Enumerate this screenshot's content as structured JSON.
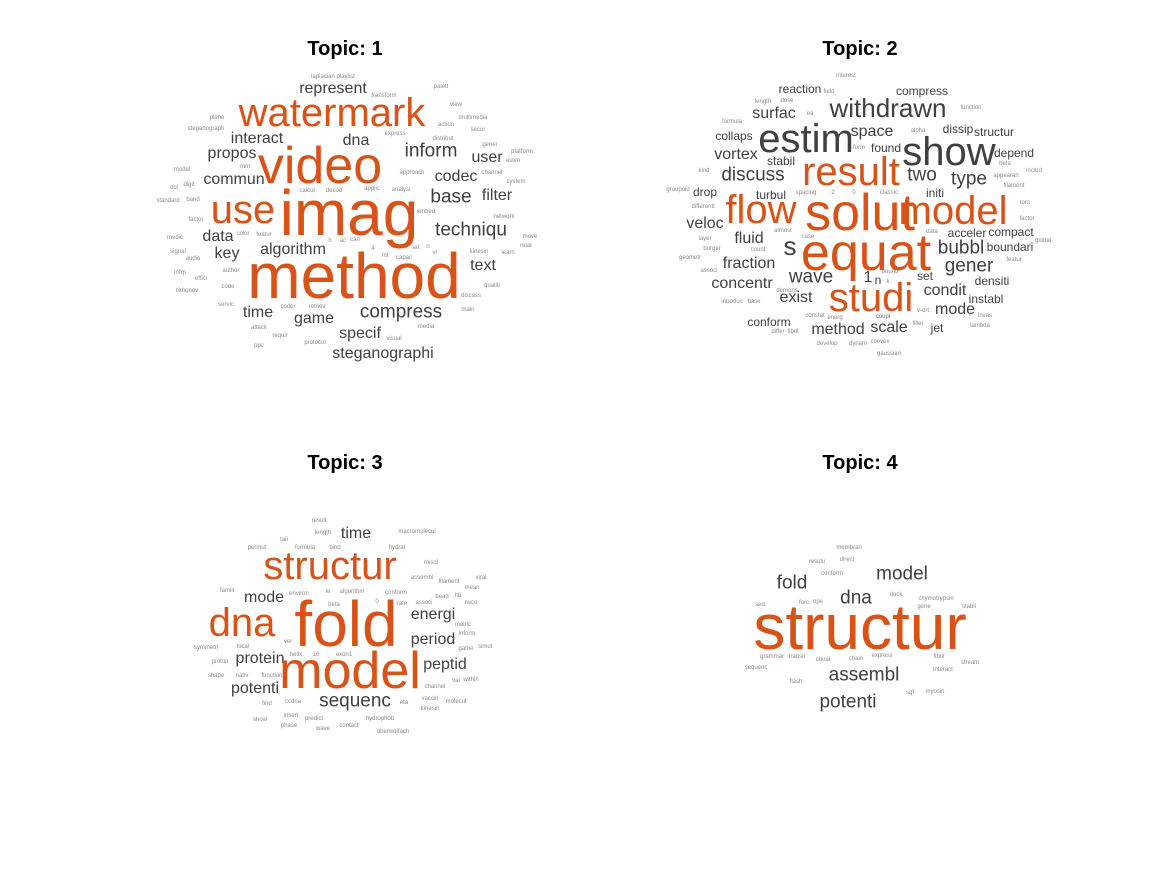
{
  "colors": {
    "highlight": "#d95319",
    "normal": "#404040",
    "minor": "#8c8c8c"
  },
  "panels": [
    {
      "title": "Topic: 1",
      "words": [
        {
          "text": "laplacian playlist",
          "w": 1
        },
        {
          "text": "palett",
          "w": 1
        },
        {
          "text": "transform",
          "w": 1
        },
        {
          "text": "represent",
          "w": 3
        },
        {
          "text": "watermark",
          "w": 6
        },
        {
          "text": "view",
          "w": 1
        },
        {
          "text": "plane",
          "w": 1
        },
        {
          "text": "multimedia",
          "w": 1
        },
        {
          "text": "action",
          "w": 1
        },
        {
          "text": "steganograph",
          "w": 1
        },
        {
          "text": "secur",
          "w": 1
        },
        {
          "text": "interact",
          "w": 3
        },
        {
          "text": "dna",
          "w": 3
        },
        {
          "text": "distribut",
          "w": 1
        },
        {
          "text": "express",
          "w": 1
        },
        {
          "text": "gener",
          "w": 1
        },
        {
          "text": "inform",
          "w": 4
        },
        {
          "text": "propos",
          "w": 3
        },
        {
          "text": "video",
          "w": 7
        },
        {
          "text": "platform",
          "w": 1
        },
        {
          "text": "user",
          "w": 3
        },
        {
          "text": "estim",
          "w": 1
        },
        {
          "text": "mm",
          "w": 1
        },
        {
          "text": "model",
          "w": 1
        },
        {
          "text": "commun",
          "w": 3
        },
        {
          "text": "approach",
          "w": 1
        },
        {
          "text": "codec",
          "w": 3
        },
        {
          "text": "channel",
          "w": 1
        },
        {
          "text": "system",
          "w": 1
        },
        {
          "text": "dct",
          "w": 1
        },
        {
          "text": "digit",
          "w": 1
        },
        {
          "text": "calcul",
          "w": 1
        },
        {
          "text": "decod",
          "w": 1
        },
        {
          "text": "applic",
          "w": 1
        },
        {
          "text": "analysi",
          "w": 1
        },
        {
          "text": "base",
          "w": 4
        },
        {
          "text": "filter",
          "w": 3
        },
        {
          "text": "standard",
          "w": 1
        },
        {
          "text": "band",
          "w": 1
        },
        {
          "text": "use",
          "w": 6
        },
        {
          "text": "imag",
          "w": 8
        },
        {
          "text": "embed",
          "w": 1
        },
        {
          "text": "network",
          "w": 1
        },
        {
          "text": "factor",
          "w": 1
        },
        {
          "text": "techniqu",
          "w": 4
        },
        {
          "text": "color",
          "w": 1
        },
        {
          "text": "featur",
          "w": 1
        },
        {
          "text": "move",
          "w": 1
        },
        {
          "text": "medic",
          "w": 1
        },
        {
          "text": "data",
          "w": 3
        },
        {
          "text": "h",
          "w": 1
        },
        {
          "text": "ac",
          "w": 1
        },
        {
          "text": "can",
          "w": 1
        },
        {
          "text": "relat",
          "w": 1
        },
        {
          "text": "signal",
          "w": 1
        },
        {
          "text": "key",
          "w": 3
        },
        {
          "text": "algorithm",
          "w": 3
        },
        {
          "text": "4",
          "w": 1
        },
        {
          "text": "art",
          "w": 1
        },
        {
          "text": "n",
          "w": 1
        },
        {
          "text": "kinesin",
          "w": 1
        },
        {
          "text": "learn",
          "w": 1
        },
        {
          "text": "audio",
          "w": 1
        },
        {
          "text": "ml",
          "w": 1
        },
        {
          "text": "capac",
          "w": 1
        },
        {
          "text": "vr",
          "w": 1
        },
        {
          "text": "text",
          "w": 3
        },
        {
          "text": "mfrp",
          "w": 1
        },
        {
          "text": "author",
          "w": 1
        },
        {
          "text": "method",
          "w": 8
        },
        {
          "text": "effici",
          "w": 1
        },
        {
          "text": "qualiti",
          "w": 1
        },
        {
          "text": "code",
          "w": 1
        },
        {
          "text": "tikhonov",
          "w": 1
        },
        {
          "text": "discuss",
          "w": 1
        },
        {
          "text": "servic",
          "w": 1
        },
        {
          "text": "coder",
          "w": 1
        },
        {
          "text": "retriev",
          "w": 1
        },
        {
          "text": "compress",
          "w": 4
        },
        {
          "text": "main",
          "w": 1
        },
        {
          "text": "time",
          "w": 3
        },
        {
          "text": "game",
          "w": 3
        },
        {
          "text": "attack",
          "w": 1
        },
        {
          "text": "specif",
          "w": 3
        },
        {
          "text": "media",
          "w": 1
        },
        {
          "text": "requir",
          "w": 1
        },
        {
          "text": "visual",
          "w": 1
        },
        {
          "text": "ppc",
          "w": 1
        },
        {
          "text": "protocol",
          "w": 1
        },
        {
          "text": "steganographi",
          "w": 3
        }
      ]
    },
    {
      "title": "Topic: 2",
      "words": [
        {
          "text": "interest",
          "w": 1
        },
        {
          "text": "reaction",
          "w": 2
        },
        {
          "text": "compress",
          "w": 2
        },
        {
          "text": "field",
          "w": 1
        },
        {
          "text": "length",
          "w": 1
        },
        {
          "text": "dose",
          "w": 1
        },
        {
          "text": "withdrawn",
          "w": 5
        },
        {
          "text": "ea",
          "w": 1
        },
        {
          "text": "function",
          "w": 1
        },
        {
          "text": "surfac",
          "w": 3
        },
        {
          "text": "formula",
          "w": 1
        },
        {
          "text": "space",
          "w": 3
        },
        {
          "text": "dissip",
          "w": 2
        },
        {
          "text": "structur",
          "w": 2
        },
        {
          "text": "collaps",
          "w": 2
        },
        {
          "text": "estim",
          "w": 6
        },
        {
          "text": "alpha",
          "w": 1
        },
        {
          "text": "found",
          "w": 2
        },
        {
          "text": "show",
          "w": 6
        },
        {
          "text": "form",
          "w": 1
        },
        {
          "text": "coupl",
          "w": 1
        },
        {
          "text": "beta",
          "w": 1
        },
        {
          "text": "vortex",
          "w": 3
        },
        {
          "text": "stabil",
          "w": 2
        },
        {
          "text": "depend",
          "w": 2
        },
        {
          "text": "result",
          "w": 6
        },
        {
          "text": "filament",
          "w": 1
        },
        {
          "text": "includ",
          "w": 1
        },
        {
          "text": "discuss",
          "w": 4
        },
        {
          "text": "two",
          "w": 4
        },
        {
          "text": "type",
          "w": 4
        },
        {
          "text": "appearan",
          "w": 1
        },
        {
          "text": "kind",
          "w": 1
        },
        {
          "text": "classic",
          "w": 1
        },
        {
          "text": "turbul",
          "w": 2
        },
        {
          "text": "groupoid",
          "w": 1
        },
        {
          "text": "drop",
          "w": 2
        },
        {
          "text": "initi",
          "w": 2
        },
        {
          "text": "spacing",
          "w": 1
        },
        {
          "text": "2",
          "w": 1
        },
        {
          "text": "0",
          "w": 1
        },
        {
          "text": "flow",
          "w": 6
        },
        {
          "text": "solut",
          "w": 7
        },
        {
          "text": "model",
          "w": 6
        },
        {
          "text": "tors",
          "w": 1
        },
        {
          "text": "differenti",
          "w": 1
        },
        {
          "text": "factor",
          "w": 1
        },
        {
          "text": "veloc",
          "w": 3
        },
        {
          "text": "compact",
          "w": 2
        },
        {
          "text": "almost",
          "w": 1
        },
        {
          "text": "acceler",
          "w": 2
        },
        {
          "text": "data",
          "w": 1
        },
        {
          "text": "fluid",
          "w": 3
        },
        {
          "text": "case",
          "w": 1
        },
        {
          "text": "s",
          "w": 5
        },
        {
          "text": "equat",
          "w": 7
        },
        {
          "text": "bubbl",
          "w": 4
        },
        {
          "text": "layer",
          "w": 1
        },
        {
          "text": "global",
          "w": 1
        },
        {
          "text": "boundari",
          "w": 2
        },
        {
          "text": "burger",
          "w": 1
        },
        {
          "text": "count",
          "w": 1
        },
        {
          "text": "fraction",
          "w": 3
        },
        {
          "text": "geometr",
          "w": 1
        },
        {
          "text": "gener",
          "w": 4
        },
        {
          "text": "featur",
          "w": 1
        },
        {
          "text": "wave",
          "w": 4
        },
        {
          "text": "associ",
          "w": 1
        },
        {
          "text": "1",
          "w": 3
        },
        {
          "text": "n",
          "w": 2
        },
        {
          "text": "bound",
          "w": 1
        },
        {
          "text": "set",
          "w": 2
        },
        {
          "text": "densiti",
          "w": 2
        },
        {
          "text": "concentr",
          "w": 3
        },
        {
          "text": "k",
          "w": 1
        },
        {
          "text": "studi",
          "w": 6
        },
        {
          "text": "condit",
          "w": 3
        },
        {
          "text": "exist",
          "w": 3
        },
        {
          "text": "introduc",
          "w": 1
        },
        {
          "text": "base",
          "w": 1
        },
        {
          "text": "demons",
          "w": 1
        },
        {
          "text": "instabl",
          "w": 2
        },
        {
          "text": "mode",
          "w": 3
        },
        {
          "text": "v-ort",
          "w": 1
        },
        {
          "text": "invas",
          "w": 1
        },
        {
          "text": "conform",
          "w": 2
        },
        {
          "text": "constat",
          "w": 1
        },
        {
          "text": "energ",
          "w": 1
        },
        {
          "text": "coupl",
          "w": 1
        },
        {
          "text": "scale",
          "w": 3
        },
        {
          "text": "filler",
          "w": 1
        },
        {
          "text": "jet",
          "w": 2
        },
        {
          "text": "lambda",
          "w": 1
        },
        {
          "text": "differ",
          "w": 1
        },
        {
          "text": "fibril",
          "w": 1
        },
        {
          "text": "method",
          "w": 3
        },
        {
          "text": "convex",
          "w": 1
        },
        {
          "text": "develop",
          "w": 1
        },
        {
          "text": "dynam",
          "w": 1
        },
        {
          "text": "gaussian",
          "w": 1
        }
      ]
    },
    {
      "title": "Topic: 3",
      "words": [
        {
          "text": "result",
          "w": 1
        },
        {
          "text": "length",
          "w": 1
        },
        {
          "text": "time",
          "w": 3
        },
        {
          "text": "macromolecul",
          "w": 1
        },
        {
          "text": "tail",
          "w": 1
        },
        {
          "text": "permut",
          "w": 1
        },
        {
          "text": "formula",
          "w": 1
        },
        {
          "text": "bind",
          "w": 1
        },
        {
          "text": "hydrat",
          "w": 1
        },
        {
          "text": "structur",
          "w": 6
        },
        {
          "text": "miscf",
          "w": 1
        },
        {
          "text": "viral",
          "w": 1
        },
        {
          "text": "assembl",
          "w": 1
        },
        {
          "text": "filament",
          "w": 1
        },
        {
          "text": "mean",
          "w": 1
        },
        {
          "text": "famili",
          "w": 1
        },
        {
          "text": "environ",
          "w": 1
        },
        {
          "text": "le",
          "w": 1
        },
        {
          "text": "algorithm",
          "w": 1
        },
        {
          "text": "conform",
          "w": 1
        },
        {
          "text": "bead",
          "w": 1
        },
        {
          "text": "hb",
          "w": 1
        },
        {
          "text": "mode",
          "w": 3
        },
        {
          "text": "beta",
          "w": 1
        },
        {
          "text": "0",
          "w": 1
        },
        {
          "text": "rate",
          "w": 1
        },
        {
          "text": "associ",
          "w": 1
        },
        {
          "text": "rwco",
          "w": 1
        },
        {
          "text": "dna",
          "w": 6
        },
        {
          "text": "fold",
          "w": 8
        },
        {
          "text": "energi",
          "w": 3
        },
        {
          "text": "matric",
          "w": 1
        },
        {
          "text": "inform",
          "w": 1
        },
        {
          "text": "ver",
          "w": 1
        },
        {
          "text": "period",
          "w": 3
        },
        {
          "text": "symmetri",
          "w": 1
        },
        {
          "text": "local",
          "w": 1
        },
        {
          "text": "simul",
          "w": 1
        },
        {
          "text": "helix",
          "w": 1
        },
        {
          "text": "16",
          "w": 1
        },
        {
          "text": "exon1",
          "w": 1
        },
        {
          "text": "protein",
          "w": 3
        },
        {
          "text": "proton",
          "w": 1
        },
        {
          "text": "model",
          "w": 7
        },
        {
          "text": "peptid",
          "w": 3
        },
        {
          "text": "game",
          "w": 1
        },
        {
          "text": "shape",
          "w": 1
        },
        {
          "text": "nativ",
          "w": 1
        },
        {
          "text": "function",
          "w": 1
        },
        {
          "text": "val",
          "w": 1
        },
        {
          "text": "within",
          "w": 1
        },
        {
          "text": "potenti",
          "w": 3
        },
        {
          "text": "channel",
          "w": 1
        },
        {
          "text": "sequenc",
          "w": 4
        },
        {
          "text": "find",
          "w": 1
        },
        {
          "text": "ccdna",
          "w": 1
        },
        {
          "text": "vaccin",
          "w": 1
        },
        {
          "text": "molecul",
          "w": 1
        },
        {
          "text": "eta",
          "w": 1
        },
        {
          "text": "kinesin",
          "w": 1
        },
        {
          "text": "show",
          "w": 1
        },
        {
          "text": "insert",
          "w": 1
        },
        {
          "text": "predict",
          "w": 1
        },
        {
          "text": "hydrophob",
          "w": 1
        },
        {
          "text": "phase",
          "w": 1
        },
        {
          "text": "wave",
          "w": 1
        },
        {
          "text": "contact",
          "w": 1
        },
        {
          "text": "oberwolfach",
          "w": 1
        }
      ]
    },
    {
      "title": "Topic: 4",
      "words": [
        {
          "text": "membran",
          "w": 1
        },
        {
          "text": "direct",
          "w": 1
        },
        {
          "text": "residu",
          "w": 1
        },
        {
          "text": "conform",
          "w": 1
        },
        {
          "text": "model",
          "w": 4
        },
        {
          "text": "fold",
          "w": 4
        },
        {
          "text": "dock",
          "w": 1
        },
        {
          "text": "chymotrypsin",
          "w": 1
        },
        {
          "text": "dna",
          "w": 4
        },
        {
          "text": "forc",
          "w": 1
        },
        {
          "text": "ope",
          "w": 1
        },
        {
          "text": "gene",
          "w": 1
        },
        {
          "text": "stabil",
          "w": 1
        },
        {
          "text": "sed",
          "w": 1
        },
        {
          "text": "structur",
          "w": 8
        },
        {
          "text": "grammar",
          "w": 1
        },
        {
          "text": "transit",
          "w": 1
        },
        {
          "text": "chiral",
          "w": 1
        },
        {
          "text": "chain",
          "w": 1
        },
        {
          "text": "express",
          "w": 1
        },
        {
          "text": "fibril",
          "w": 1
        },
        {
          "text": "stream",
          "w": 1
        },
        {
          "text": "sequenc",
          "w": 1
        },
        {
          "text": "interact",
          "w": 1
        },
        {
          "text": "assembl",
          "w": 4
        },
        {
          "text": "flash",
          "w": 1
        },
        {
          "text": "sqf",
          "w": 1
        },
        {
          "text": "myosin",
          "w": 1
        },
        {
          "text": "potenti",
          "w": 4
        }
      ]
    }
  ]
}
